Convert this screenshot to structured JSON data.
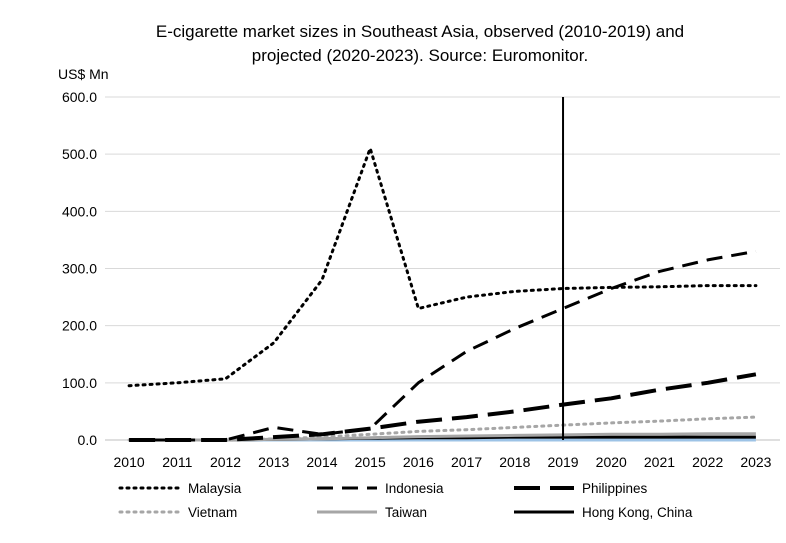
{
  "chart_data": {
    "type": "line",
    "title_lines": [
      "E-cigarette market sizes in Southeast Asia, observed (2010-2019) and",
      "projected (2020-2023). Source: Euromonitor."
    ],
    "ylabel": "US$ Mn",
    "xlabel": "",
    "ylim": [
      0,
      600
    ],
    "y_ticks": [
      "0.0",
      "100.0",
      "200.0",
      "300.0",
      "400.0",
      "500.0",
      "600.0"
    ],
    "y_tick_values": [
      0,
      100,
      200,
      300,
      400,
      500,
      600
    ],
    "x": [
      "2010",
      "2011",
      "2012",
      "2013",
      "2014",
      "2015",
      "2016",
      "2017",
      "2018",
      "2019",
      "2020",
      "2021",
      "2022",
      "2023"
    ],
    "grid": "horizontal",
    "legend_position": "bottom",
    "divider_at": "2019",
    "series": [
      {
        "name": "Malaysia",
        "color": "#000000",
        "style": "dotted",
        "values": [
          95,
          100,
          107,
          170,
          280,
          510,
          230,
          250,
          260,
          265,
          267,
          268,
          270,
          270
        ]
      },
      {
        "name": "Indonesia",
        "color": "#000000",
        "style": "dashed",
        "values": [
          0,
          0,
          0,
          22,
          10,
          20,
          100,
          155,
          195,
          230,
          265,
          295,
          315,
          330
        ]
      },
      {
        "name": "Philippines",
        "color": "#000000",
        "style": "long-dashed",
        "values": [
          0,
          0,
          0,
          5,
          10,
          20,
          32,
          40,
          50,
          62,
          73,
          88,
          100,
          115
        ]
      },
      {
        "name": "Vietnam",
        "color": "#a6a6a6",
        "style": "dotted",
        "values": [
          0,
          0,
          0,
          2,
          5,
          10,
          15,
          18,
          22,
          26,
          30,
          33,
          37,
          40
        ]
      },
      {
        "name": "Taiwan",
        "color": "#a6a6a6",
        "style": "solid",
        "values": [
          0,
          0,
          0,
          1,
          2,
          4,
          6,
          7,
          8,
          9,
          10,
          10,
          11,
          11
        ]
      },
      {
        "name": "Hong Kong, China",
        "color": "#000000",
        "style": "solid",
        "values": [
          0,
          0,
          0,
          1,
          2,
          3,
          4,
          4,
          5,
          5,
          5,
          5,
          5,
          5
        ]
      },
      {
        "name": "",
        "color": "#9dc3e6",
        "style": "solid",
        "values": [
          0,
          0,
          0,
          0,
          0,
          0,
          0,
          0,
          0,
          0,
          0,
          0,
          0,
          0
        ]
      }
    ]
  }
}
